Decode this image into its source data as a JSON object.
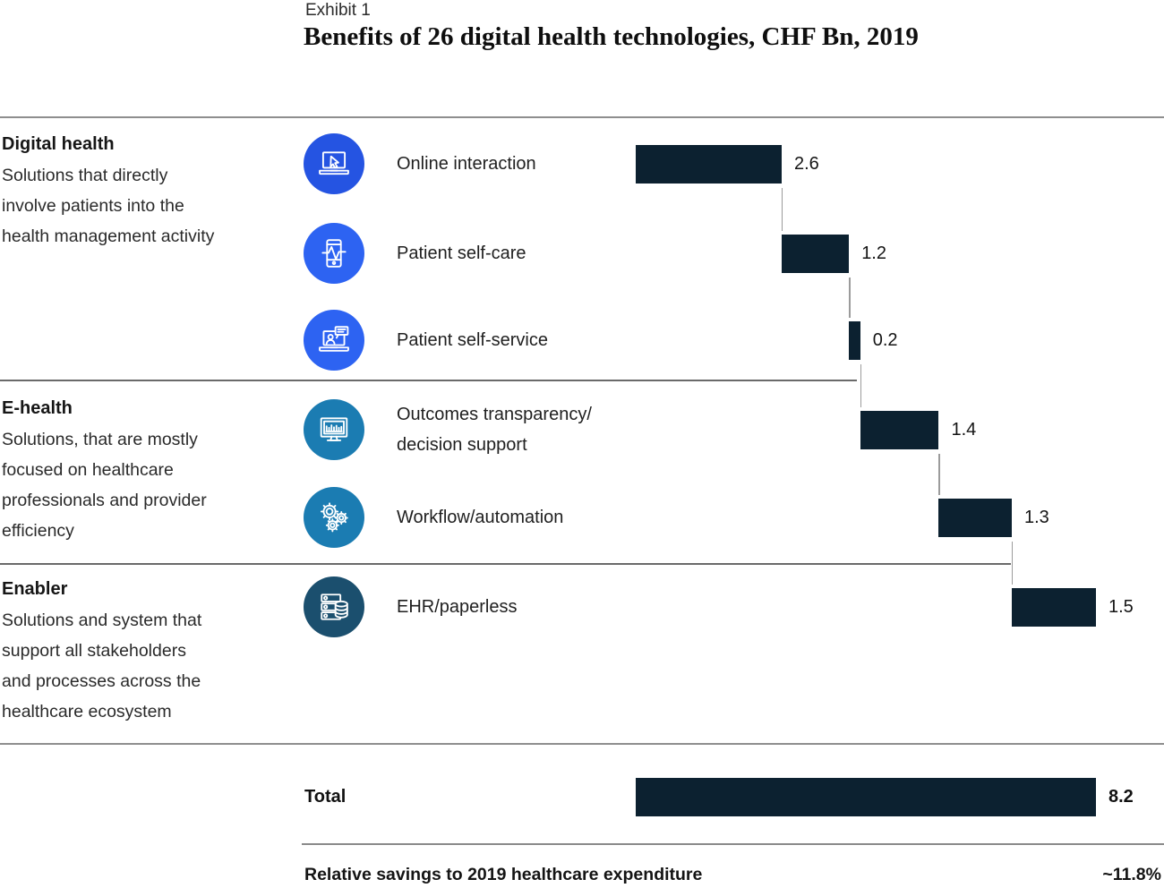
{
  "header": {
    "eyebrow": "Exhibit 1",
    "title": "Benefits of 26 digital health technologies, CHF Bn, 2019"
  },
  "chart_data": {
    "type": "bar",
    "variant": "waterfall",
    "unit": "CHF Bn",
    "xlim": [
      0,
      8.2
    ],
    "sections": [
      {
        "name": "Digital health",
        "description": "Solutions that directly\ninvolve patients into the\nhealth management activity"
      },
      {
        "name": "E-health",
        "description": "Solutions, that are mostly\nfocused on healthcare\nprofessionals and provider\nefficiency"
      },
      {
        "name": "Enabler",
        "description": "Solutions and system that\nsupport all stakeholders\nand processes across the\nhealthcare ecosystem"
      }
    ],
    "rows": [
      {
        "label": "Online interaction",
        "value": 2.6,
        "section": "Digital health",
        "icon": "laptop-cursor-icon",
        "icon_color": "#2554e2"
      },
      {
        "label": "Patient self-care",
        "value": 1.2,
        "section": "Digital health",
        "icon": "phone-pulse-icon",
        "icon_color": "#2d63f2"
      },
      {
        "label": "Patient self-service",
        "value": 0.2,
        "section": "Digital health",
        "icon": "telehealth-laptop-icon",
        "icon_color": "#2d63f2"
      },
      {
        "label": "Outcomes transparency/\ndecision support",
        "value": 1.4,
        "section": "E-health",
        "icon": "monitor-chart-icon",
        "icon_color": "#1b7cb2"
      },
      {
        "label": "Workflow/automation",
        "value": 1.3,
        "section": "E-health",
        "icon": "gears-icon",
        "icon_color": "#1b7cb2"
      },
      {
        "label": "EHR/paperless",
        "value": 1.5,
        "section": "Enabler",
        "icon": "server-database-icon",
        "icon_color": "#1b4f6e"
      }
    ],
    "total": {
      "label": "Total",
      "value": 8.2
    },
    "footer": {
      "label": "Relative savings to 2019 healthcare expenditure",
      "value": "~11.8%"
    },
    "colors": {
      "bar": "#0c2130",
      "connector": "#9b9b9b",
      "divider": "#8e8e8e"
    }
  }
}
